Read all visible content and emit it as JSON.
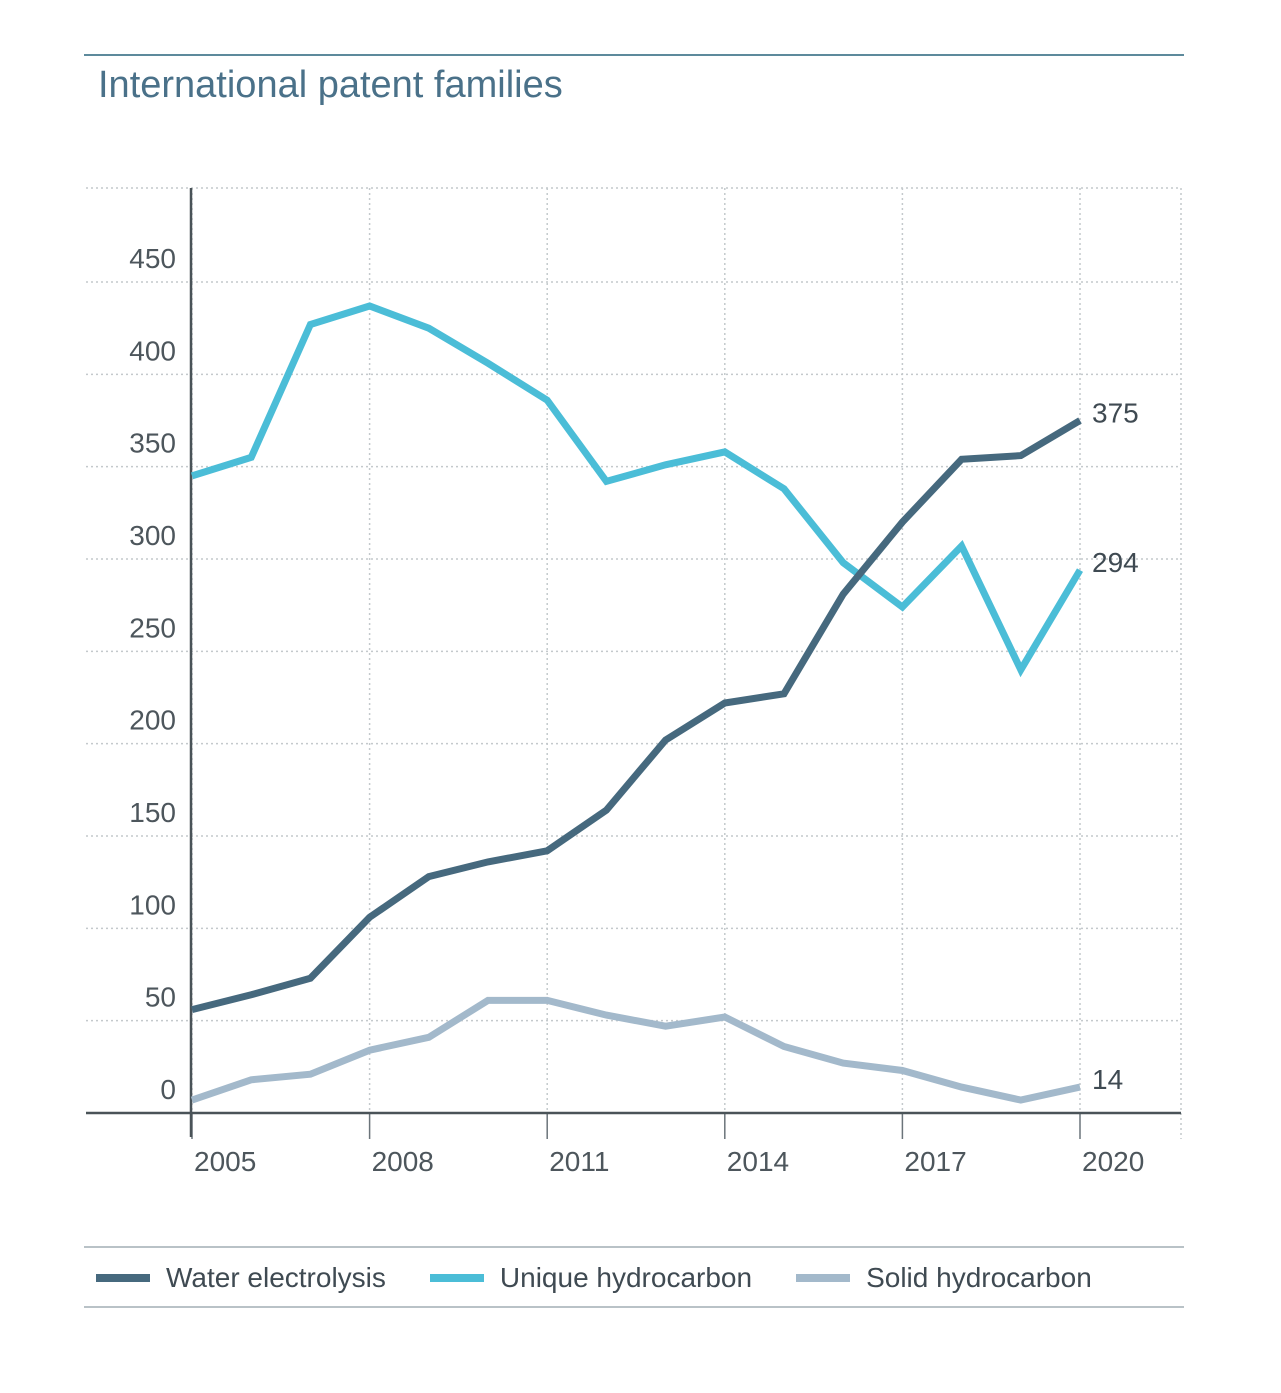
{
  "title": "International patent families",
  "chart_data": {
    "type": "line",
    "x": [
      2005,
      2006,
      2007,
      2008,
      2009,
      2010,
      2011,
      2012,
      2013,
      2014,
      2015,
      2016,
      2017,
      2018,
      2019,
      2020
    ],
    "xticks": [
      "2005",
      "2008",
      "2011",
      "2014",
      "2017",
      "2020"
    ],
    "yticks": [
      "0",
      "50",
      "100",
      "150",
      "200",
      "250",
      "300",
      "350",
      "400",
      "450"
    ],
    "ylim": [
      -12,
      500
    ],
    "grid": true,
    "legend_position": "bottom",
    "series": [
      {
        "name": "Water electrolysis",
        "color": "#46697e",
        "values": [
          56,
          64,
          73,
          106,
          128,
          136,
          142,
          164,
          202,
          222,
          227,
          281,
          320,
          354,
          356,
          375
        ],
        "end_label": "375"
      },
      {
        "name": "Unique hydrocarbon",
        "color": "#4bbdd7",
        "values": [
          345,
          355,
          427,
          437,
          425,
          406,
          386,
          342,
          351,
          358,
          338,
          298,
          274,
          307,
          240,
          294
        ],
        "end_label": "294"
      },
      {
        "name": "Solid hydrocarbon",
        "color": "#a3b9cb",
        "values": [
          7,
          18,
          21,
          34,
          41,
          61,
          61,
          53,
          47,
          52,
          36,
          27,
          23,
          14,
          7,
          14
        ],
        "end_label": "14"
      }
    ]
  }
}
